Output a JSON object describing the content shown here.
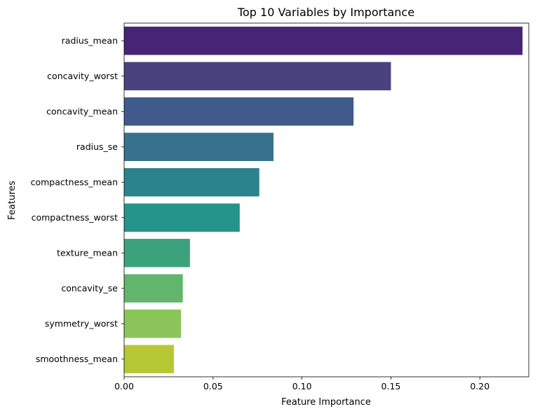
{
  "chart_data": {
    "type": "bar",
    "orientation": "horizontal",
    "title": "Top 10 Variables by Importance",
    "xlabel": "Feature Importance",
    "ylabel": "Features",
    "categories": [
      "radius_mean",
      "concavity_worst",
      "concavity_mean",
      "radius_se",
      "compactness_mean",
      "compactness_worst",
      "texture_mean",
      "concavity_se",
      "symmetry_worst",
      "smoothness_mean"
    ],
    "values": [
      0.224,
      0.15,
      0.129,
      0.084,
      0.076,
      0.065,
      0.037,
      0.033,
      0.032,
      0.028
    ],
    "colors": [
      "#482475",
      "#48427e",
      "#3f5b8b",
      "#37718e",
      "#2b838e",
      "#25958b",
      "#3ba27b",
      "#62b56b",
      "#8bc55a",
      "#b5c834"
    ],
    "xlim": [
      0,
      0.2275
    ],
    "xticks": [
      0.0,
      0.05,
      0.1,
      0.15,
      0.2
    ],
    "xtick_labels": [
      "0.00",
      "0.05",
      "0.10",
      "0.15",
      "0.20"
    ],
    "grid": false,
    "legend": "none"
  }
}
